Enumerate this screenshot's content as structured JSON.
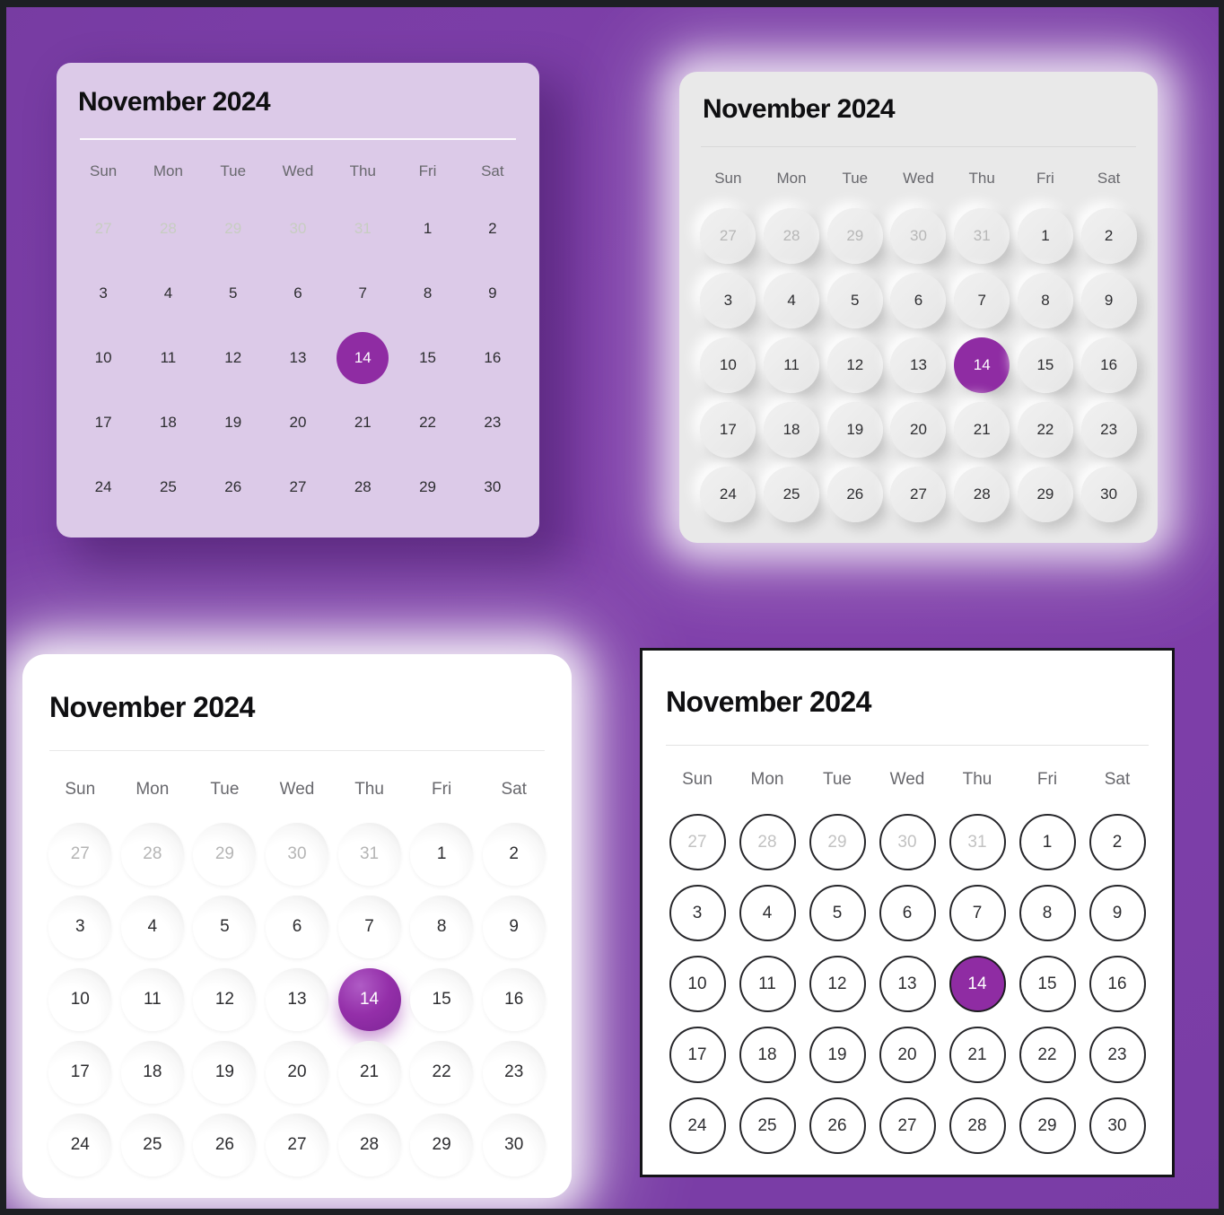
{
  "frame": {
    "border_color": "#1d1f24",
    "background_purple": "#7a3da6"
  },
  "calendar": {
    "title": "November 2024",
    "weekdays": [
      "Sun",
      "Mon",
      "Tue",
      "Wed",
      "Thu",
      "Fri",
      "Sat"
    ],
    "selected_day": "14",
    "days": [
      {
        "label": "27",
        "muted": true
      },
      {
        "label": "28",
        "muted": true
      },
      {
        "label": "29",
        "muted": true
      },
      {
        "label": "30",
        "muted": true
      },
      {
        "label": "31",
        "muted": true
      },
      {
        "label": "1"
      },
      {
        "label": "2"
      },
      {
        "label": "3"
      },
      {
        "label": "4"
      },
      {
        "label": "5"
      },
      {
        "label": "6"
      },
      {
        "label": "7"
      },
      {
        "label": "8"
      },
      {
        "label": "9"
      },
      {
        "label": "10"
      },
      {
        "label": "11"
      },
      {
        "label": "12"
      },
      {
        "label": "13"
      },
      {
        "label": "14",
        "selected": true
      },
      {
        "label": "15"
      },
      {
        "label": "16"
      },
      {
        "label": "17"
      },
      {
        "label": "18"
      },
      {
        "label": "19"
      },
      {
        "label": "20"
      },
      {
        "label": "21"
      },
      {
        "label": "22"
      },
      {
        "label": "23"
      },
      {
        "label": "24"
      },
      {
        "label": "25"
      },
      {
        "label": "26"
      },
      {
        "label": "27"
      },
      {
        "label": "28"
      },
      {
        "label": "29"
      },
      {
        "label": "30"
      }
    ]
  },
  "variants": [
    {
      "name": "flat-lavender",
      "card_bg": "#dccae8"
    },
    {
      "name": "neumorphic-gray",
      "card_bg": "#e9e9e9"
    },
    {
      "name": "neumorphic-white-glow",
      "card_bg": "#ffffff"
    },
    {
      "name": "outlined",
      "card_bg": "#ffffff",
      "border": "#141418"
    }
  ],
  "colors": {
    "accent_selected": "#8f2ca3",
    "weekday_text": "#68686d",
    "day_text": "#2d2d30"
  }
}
